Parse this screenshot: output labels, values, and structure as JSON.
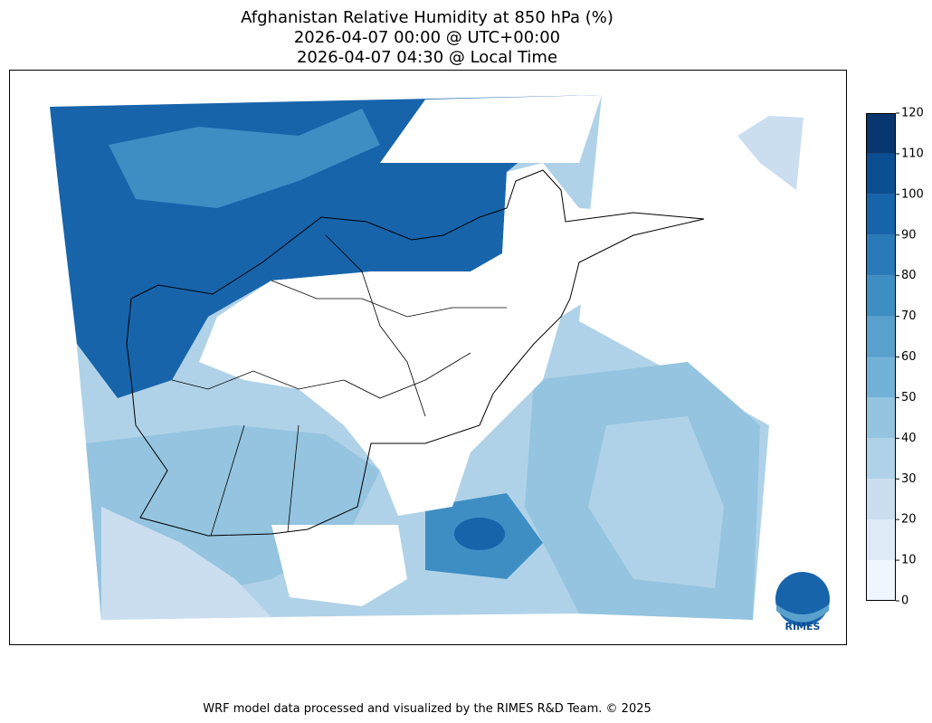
{
  "title": [
    "Afghanistan Relative Humidity at 850 hPa (%)",
    "2026-04-07 00:00 @ UTC+00:00",
    "2026-04-07 04:30 @ Local Time"
  ],
  "colorbar": {
    "ticks": [
      0,
      10,
      20,
      30,
      40,
      50,
      60,
      70,
      80,
      90,
      100,
      110,
      120
    ],
    "colors": [
      "#f0f6fd",
      "#deebf7",
      "#cadef0",
      "#b0d2e8",
      "#94c4df",
      "#73b2d8",
      "#5aa0cd",
      "#3e8ec4",
      "#2a7ab9",
      "#1764ab",
      "#0b4f93",
      "#08366e"
    ]
  },
  "logo": "RIMES",
  "footer": "WRF model data processed and visualized by the RIMES R&D Team. © 2025"
}
